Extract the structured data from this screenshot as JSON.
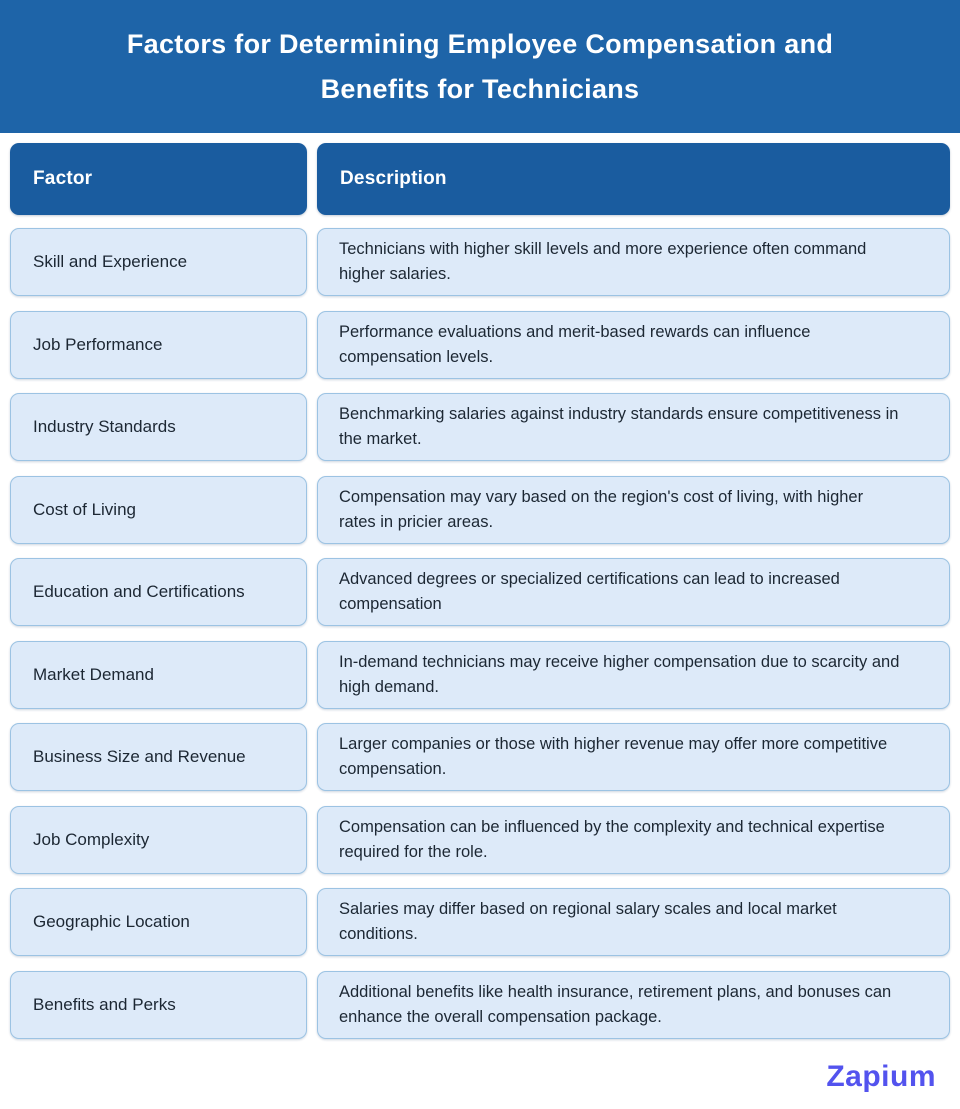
{
  "title": {
    "full": "Factors for Determining Employee Compensation and Benefits for Technicians",
    "line1": "Factors for Determining Employee Compensation and",
    "line2": "Benefits for Technicians"
  },
  "table": {
    "headers": [
      "Factor",
      "Description"
    ],
    "rows": [
      {
        "factor": "Skill and Experience",
        "description": "Technicians with higher skill levels and more experience often command higher salaries."
      },
      {
        "factor": "Job Performance",
        "description": "Performance evaluations and merit-based rewards can influence compensation levels."
      },
      {
        "factor": "Industry Standards",
        "description": "Benchmarking salaries against industry standards ensure competitiveness in the market."
      },
      {
        "factor": "Cost of Living",
        "description": "Compensation may vary based on the region's cost of living, with higher rates in pricier areas."
      },
      {
        "factor": "Education and Certifications",
        "description": "Advanced degrees or specialized certifications can lead to increased compensation"
      },
      {
        "factor": "Market Demand",
        "description": "In-demand technicians may receive higher compensation due to scarcity and high demand."
      },
      {
        "factor": "Business Size and Revenue",
        "description": "Larger companies or those with higher revenue may offer more competitive compensation."
      },
      {
        "factor": "Job Complexity",
        "description": "Compensation can be influenced by the complexity and technical expertise required for the role."
      },
      {
        "factor": "Geographic Location",
        "description": "Salaries may differ based on regional salary scales and local market conditions."
      },
      {
        "factor": "Benefits and Perks",
        "description": "Additional benefits like health insurance, retirement plans, and bonuses can enhance the overall compensation package."
      }
    ]
  },
  "footer": {
    "brand": "Zapium"
  },
  "colors": {
    "banner_blue": "#1e64a8",
    "header_blue": "#1a5c9f",
    "cell_fill": "#ddeaf9",
    "cell_border": "#9cc3e3",
    "text_dark": "#1c2733",
    "title_text": "#ffffff",
    "logo_purple": "#5353ee",
    "background": "#ffffff"
  }
}
